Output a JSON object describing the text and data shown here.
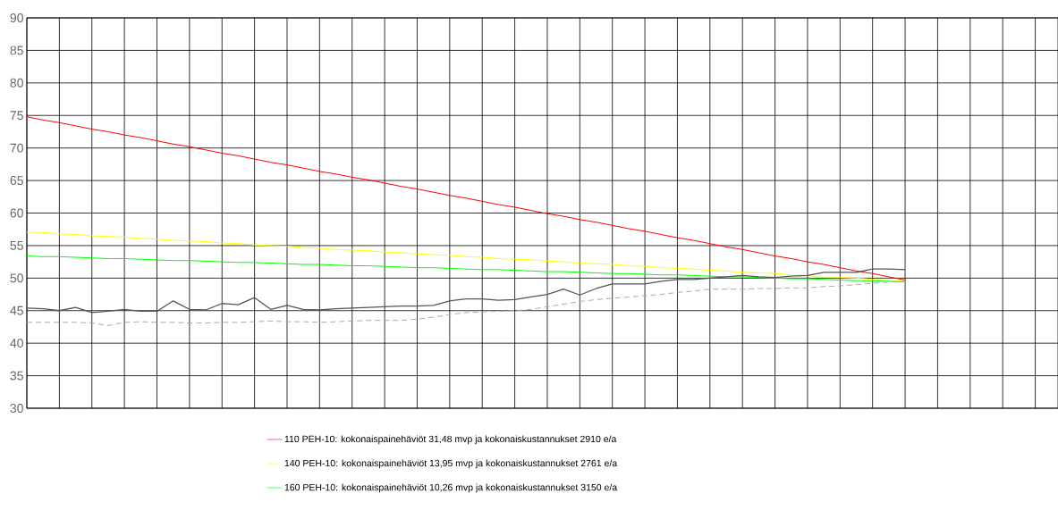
{
  "chart_data": {
    "type": "line",
    "categories": [
      null,
      null,
      null,
      null,
      null,
      null,
      null,
      null,
      null,
      null,
      null,
      null,
      null,
      null,
      null,
      null,
      null,
      null,
      null,
      null,
      null,
      null,
      null,
      null,
      null,
      null,
      null,
      null,
      null,
      null,
      null,
      null,
      null,
      null,
      null,
      null,
      null,
      null,
      null,
      null,
      null,
      null,
      null,
      null,
      null,
      null,
      null,
      null,
      null,
      null,
      null,
      null,
      null,
      null,
      null,
      null,
      null,
      null,
      null,
      null,
      null,
      null,
      null,
      null
    ],
    "ylim": [
      30,
      90
    ],
    "yticks": [
      30,
      35,
      40,
      45,
      50,
      55,
      60,
      65,
      70,
      75,
      80,
      85,
      90
    ],
    "grid": true,
    "tick_labels": "y",
    "legend": "bottom",
    "series": [
      {
        "name": "110 PEH-10: kokonaispainehäviöt 31,48 mvp ja kokonaiskustannukset 2910 e/a",
        "color": "#ff0000",
        "values": [
          74.8,
          74.3,
          73.9,
          73.4,
          72.9,
          72.5,
          72.0,
          71.6,
          71.1,
          70.6,
          70.2,
          69.7,
          69.2,
          68.8,
          68.3,
          67.8,
          67.4,
          66.9,
          66.4,
          66.0,
          65.5,
          65.1,
          64.6,
          64.1,
          63.7,
          63.2,
          62.7,
          62.3,
          61.8,
          61.3,
          60.9,
          60.4,
          59.9,
          59.5,
          59.0,
          58.6,
          58.1,
          57.6,
          57.2,
          56.7,
          56.2,
          55.8,
          55.3,
          54.8,
          54.4,
          53.9,
          53.4,
          53.0,
          52.5,
          52.1,
          51.6,
          51.1,
          50.7,
          50.2,
          49.7,
          null,
          null,
          null,
          null,
          null,
          null,
          null,
          null,
          null
        ]
      },
      {
        "name": "140 PEH-10: kokonaispainehäviöt 13,95 mvp ja kokonaiskustannukset 2761 e/a",
        "color": "#ffff00",
        "values": [
          57.1,
          57.0,
          56.8,
          56.7,
          56.5,
          56.4,
          56.3,
          56.1,
          56.0,
          55.8,
          55.7,
          55.6,
          55.4,
          55.3,
          55.1,
          55.0,
          54.9,
          54.7,
          54.6,
          54.4,
          54.3,
          54.2,
          54.0,
          53.9,
          53.7,
          53.6,
          53.5,
          53.3,
          53.2,
          53.0,
          52.9,
          52.8,
          52.6,
          52.5,
          52.3,
          52.2,
          52.1,
          51.9,
          51.8,
          51.6,
          51.5,
          51.4,
          51.2,
          51.1,
          50.9,
          50.8,
          50.7,
          50.5,
          50.4,
          50.2,
          50.1,
          50.0,
          49.8,
          49.7,
          49.5,
          null,
          null,
          null,
          null,
          null,
          null,
          null,
          null,
          null
        ]
      },
      {
        "name": "160 PEH-10: kokonaispainehäviöt 10,26 mvp ja kokonaiskustannukset 3150 e/a",
        "color": "#00ff00",
        "values": [
          53.4,
          53.3,
          53.3,
          53.2,
          53.1,
          53.0,
          53.0,
          52.9,
          52.8,
          52.7,
          52.7,
          52.6,
          52.5,
          52.4,
          52.4,
          52.3,
          52.2,
          52.1,
          52.1,
          52.0,
          51.9,
          51.9,
          51.8,
          51.7,
          51.6,
          51.6,
          51.5,
          51.4,
          51.3,
          51.3,
          51.2,
          51.1,
          51.0,
          51.0,
          50.9,
          50.8,
          50.7,
          50.7,
          50.6,
          50.5,
          50.5,
          50.4,
          50.3,
          50.2,
          50.2,
          50.1,
          50.0,
          49.9,
          49.9,
          49.8,
          49.7,
          49.6,
          49.6,
          49.5,
          49.4,
          null,
          null,
          null,
          null,
          null,
          null,
          null,
          null,
          null
        ]
      },
      {
        "color": "#555555",
        "values": [
          45.4,
          45.3,
          45.0,
          45.5,
          44.7,
          44.9,
          45.2,
          44.9,
          44.9,
          46.5,
          45.2,
          45.1,
          46.1,
          45.9,
          47.0,
          45.2,
          45.8,
          45.2,
          45.1,
          45.3,
          45.4,
          45.5,
          45.6,
          45.7,
          45.7,
          45.8,
          46.5,
          46.8,
          46.8,
          46.6,
          46.7,
          47.1,
          47.5,
          48.3,
          47.4,
          48.4,
          49.1,
          49.1,
          49.1,
          49.5,
          49.8,
          49.8,
          50.0,
          50.2,
          50.4,
          50.2,
          50.1,
          50.3,
          50.4,
          50.9,
          50.9,
          50.9,
          51.4,
          51.4,
          51.3,
          null,
          null,
          null,
          null,
          null,
          null,
          null,
          null,
          null
        ]
      },
      {
        "color": "#aaaaaa",
        "line_style": "dashed",
        "values": [
          43.2,
          43.2,
          43.2,
          43.2,
          43.1,
          42.7,
          43.2,
          43.3,
          43.2,
          43.2,
          43.1,
          43.1,
          43.2,
          43.2,
          43.3,
          43.4,
          43.3,
          43.3,
          43.2,
          43.3,
          43.4,
          43.5,
          43.5,
          43.5,
          43.7,
          44.0,
          44.4,
          44.7,
          44.8,
          44.9,
          45.0,
          45.2,
          45.6,
          46.0,
          46.4,
          46.7,
          46.9,
          47.1,
          47.3,
          47.5,
          47.8,
          48.0,
          48.3,
          48.3,
          48.3,
          48.4,
          48.4,
          48.5,
          48.5,
          48.7,
          48.8,
          49.0,
          49.2,
          49.4,
          49.5,
          null,
          null,
          null,
          null,
          null,
          null,
          null,
          null,
          null
        ]
      }
    ]
  }
}
